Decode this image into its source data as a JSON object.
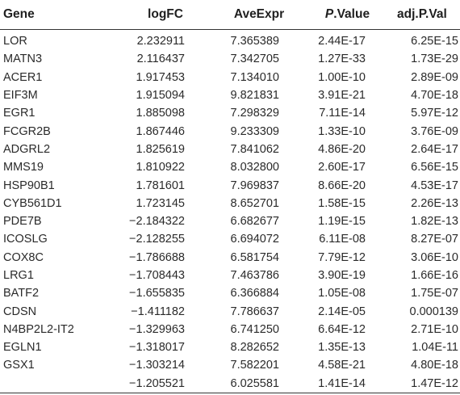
{
  "table": {
    "headers": {
      "gene": "Gene",
      "logfc": "logFC",
      "aveexpr": "AveExpr",
      "pvalue_italic": "P",
      "pvalue_rest": ".Value",
      "adj": "adj.P.Val"
    },
    "rows": [
      {
        "gene": "LOR",
        "logfc": "2.232911",
        "aveexpr": "7.365389",
        "pvalue": "2.44E-17",
        "adj": "6.25E-15"
      },
      {
        "gene": "MATN3",
        "logfc": "2.116437",
        "aveexpr": "7.342705",
        "pvalue": "1.27E-33",
        "adj": "1.73E-29"
      },
      {
        "gene": "ACER1",
        "logfc": "1.917453",
        "aveexpr": "7.134010",
        "pvalue": "1.00E-10",
        "adj": "2.89E-09"
      },
      {
        "gene": "EIF3M",
        "logfc": "1.915094",
        "aveexpr": "9.821831",
        "pvalue": "3.91E-21",
        "adj": "4.70E-18"
      },
      {
        "gene": "EGR1",
        "logfc": "1.885098",
        "aveexpr": "7.298329",
        "pvalue": "7.11E-14",
        "adj": "5.97E-12"
      },
      {
        "gene": "FCGR2B",
        "logfc": "1.867446",
        "aveexpr": "9.233309",
        "pvalue": "1.33E-10",
        "adj": "3.76E-09"
      },
      {
        "gene": "ADGRL2",
        "logfc": "1.825619",
        "aveexpr": "7.841062",
        "pvalue": "4.86E-20",
        "adj": "2.64E-17"
      },
      {
        "gene": "MMS19",
        "logfc": "1.810922",
        "aveexpr": "8.032800",
        "pvalue": "2.60E-17",
        "adj": "6.56E-15"
      },
      {
        "gene": "HSP90B1",
        "logfc": "1.781601",
        "aveexpr": "7.969837",
        "pvalue": "8.66E-20",
        "adj": "4.53E-17"
      },
      {
        "gene": "CYB561D1",
        "logfc": "1.723145",
        "aveexpr": "8.652701",
        "pvalue": "1.58E-15",
        "adj": "2.26E-13"
      },
      {
        "gene": "PDE7B",
        "logfc": "−2.184322",
        "aveexpr": "6.682677",
        "pvalue": "1.19E-15",
        "adj": "1.82E-13"
      },
      {
        "gene": "ICOSLG",
        "logfc": "−2.128255",
        "aveexpr": "6.694072",
        "pvalue": "6.11E-08",
        "adj": "8.27E-07"
      },
      {
        "gene": "COX8C",
        "logfc": "−1.786688",
        "aveexpr": "6.581754",
        "pvalue": "7.79E-12",
        "adj": "3.06E-10"
      },
      {
        "gene": "LRG1",
        "logfc": "−1.708443",
        "aveexpr": "7.463786",
        "pvalue": "3.90E-19",
        "adj": "1.66E-16"
      },
      {
        "gene": "BATF2",
        "logfc": "−1.655835",
        "aveexpr": "6.366884",
        "pvalue": "1.05E-08",
        "adj": "1.75E-07"
      },
      {
        "gene": "CDSN",
        "logfc": "−1.411182",
        "aveexpr": "7.786637",
        "pvalue": "2.14E-05",
        "adj": "0.000139"
      },
      {
        "gene": "N4BP2L2-IT2",
        "logfc": "−1.329963",
        "aveexpr": "6.741250",
        "pvalue": "6.64E-12",
        "adj": "2.71E-10"
      },
      {
        "gene": "EGLN1",
        "logfc": "−1.318017",
        "aveexpr": "8.282652",
        "pvalue": "1.35E-13",
        "adj": "1.04E-11"
      },
      {
        "gene": "GSX1",
        "logfc": "−1.303214",
        "aveexpr": "7.582201",
        "pvalue": "4.58E-21",
        "adj": "4.80E-18"
      },
      {
        "gene": "",
        "logfc": "−1.205521",
        "aveexpr": "6.025581",
        "pvalue": "1.41E-14",
        "adj": "1.47E-12"
      }
    ]
  }
}
